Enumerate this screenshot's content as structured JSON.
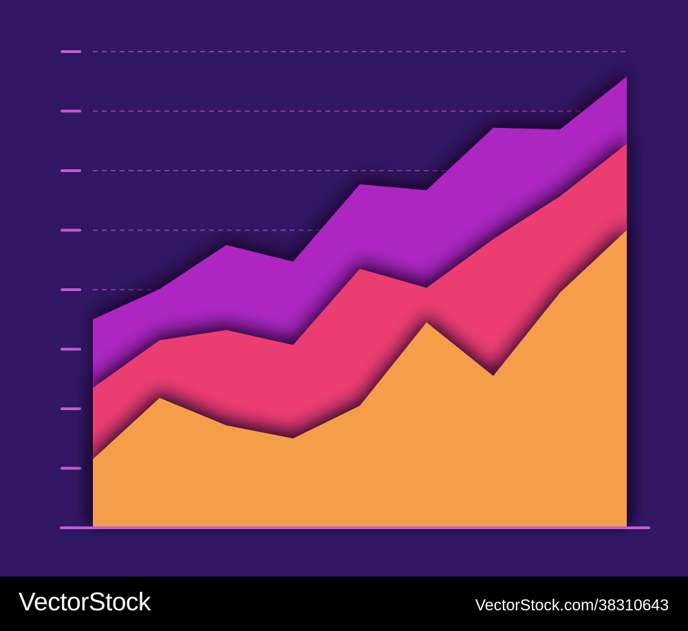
{
  "colors": {
    "background": "#311763",
    "axis": "#c45ad6",
    "grid": "#b857d2",
    "shadow": "#14052e"
  },
  "chart_data": {
    "type": "area",
    "stacked": true,
    "title": "",
    "xlabel": "",
    "ylabel": "",
    "ylim": [
      0,
      8
    ],
    "yticks": [
      1,
      2,
      3,
      4,
      5,
      6,
      7,
      8
    ],
    "x": [
      0,
      1,
      2,
      3,
      4,
      5,
      6,
      7,
      8
    ],
    "grid": "dashed horizontal",
    "legend": "none",
    "series": [
      {
        "values": [
          1.15,
          2.18,
          1.72,
          1.5,
          2.05,
          3.45,
          2.55,
          3.95,
          5.0
        ],
        "color": "#f59e4a"
      },
      {
        "values": [
          1.2,
          0.97,
          1.6,
          1.57,
          2.3,
          0.58,
          2.3,
          1.62,
          1.45
        ],
        "color": "#ec3e72"
      },
      {
        "values": [
          1.15,
          0.86,
          1.43,
          1.4,
          1.42,
          1.64,
          1.87,
          1.12,
          1.13
        ],
        "color": "#ad26c2"
      }
    ]
  },
  "footer": {
    "brand": "VectorStock",
    "credit": "VectorStock.com/38310643"
  }
}
